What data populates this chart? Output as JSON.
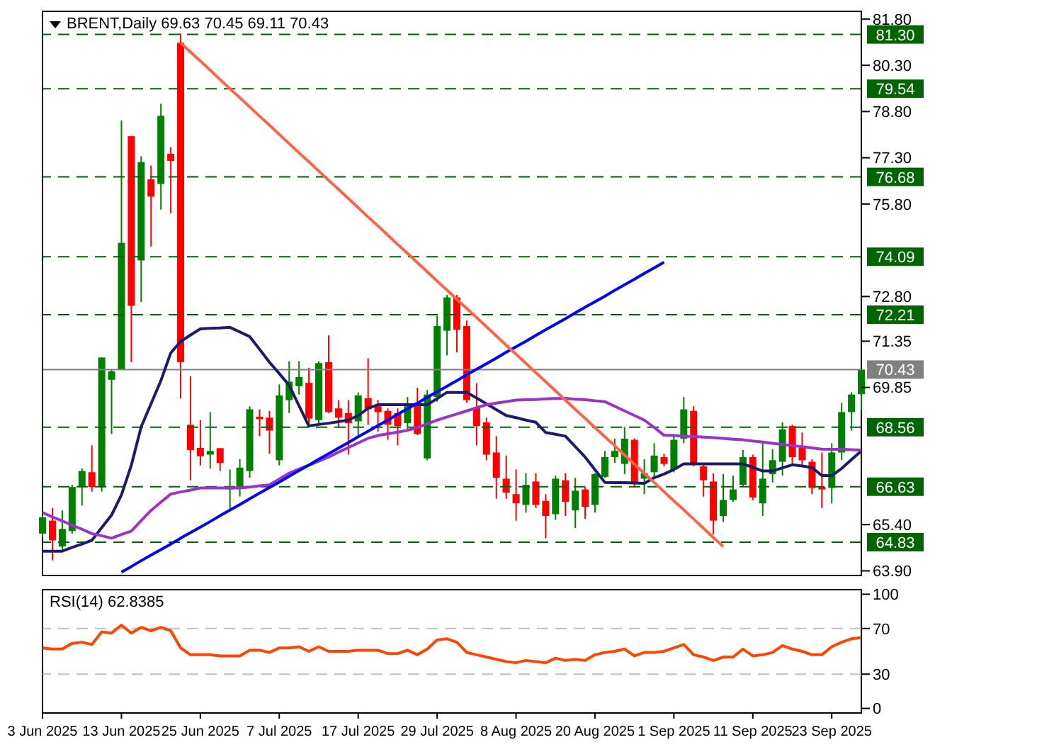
{
  "chart_data": [
    {
      "type": "candlestick",
      "title": "BRENT,Daily 69.63 70.45 69.11 70.43",
      "ohlc": [
        [
          65.11,
          65.7,
          65.0,
          65.64
        ],
        [
          65.53,
          65.94,
          64.24,
          64.89
        ],
        [
          64.69,
          65.86,
          64.59,
          65.26
        ],
        [
          65.19,
          66.69,
          65.11,
          66.62
        ],
        [
          66.62,
          67.22,
          66.02,
          67.14
        ],
        [
          67.1,
          67.97,
          66.47,
          66.62
        ],
        [
          66.62,
          70.82,
          66.47,
          70.82
        ],
        [
          70.1,
          70.44,
          68.34,
          70.37
        ],
        [
          70.44,
          78.51,
          70.44,
          74.54
        ],
        [
          78.0,
          78.0,
          70.67,
          72.5
        ],
        [
          73.97,
          77.35,
          72.62,
          77.16
        ],
        [
          76.6,
          77.05,
          74.42,
          76.04
        ],
        [
          76.45,
          79.05,
          75.62,
          78.66
        ],
        [
          77.43,
          77.65,
          75.5,
          77.2
        ],
        [
          81.03,
          81.33,
          69.5,
          70.67
        ],
        [
          68.64,
          70.22,
          66.84,
          67.82
        ],
        [
          67.89,
          68.79,
          67.32,
          67.62
        ],
        [
          67.67,
          69.05,
          67.22,
          67.79
        ],
        [
          67.88,
          67.88,
          67.14,
          67.4
        ],
        [
          66.54,
          67.19,
          65.89,
          66.65
        ],
        [
          66.59,
          67.52,
          66.31,
          67.25
        ],
        [
          67.14,
          69.24,
          66.92,
          69.14
        ],
        [
          68.9,
          69.14,
          68.27,
          68.82
        ],
        [
          68.87,
          69.09,
          67.7,
          68.45
        ],
        [
          67.49,
          69.95,
          67.32,
          69.59
        ],
        [
          69.44,
          70.7,
          69.02,
          70.04
        ],
        [
          69.89,
          70.7,
          69.62,
          70.19
        ],
        [
          70.0,
          70.49,
          68.6,
          68.84
        ],
        [
          68.79,
          70.7,
          68.69,
          70.64
        ],
        [
          70.67,
          71.54,
          69.02,
          69.05
        ],
        [
          69.17,
          69.44,
          68.57,
          68.87
        ],
        [
          69.02,
          69.44,
          67.67,
          68.69
        ],
        [
          68.75,
          69.69,
          68.27,
          69.59
        ],
        [
          69.5,
          70.79,
          68.64,
          69.14
        ],
        [
          69.24,
          69.44,
          68.42,
          69.05
        ],
        [
          69.09,
          69.17,
          68.15,
          68.64
        ],
        [
          69.02,
          69.17,
          67.97,
          68.6
        ],
        [
          68.69,
          69.54,
          68.49,
          69.24
        ],
        [
          69.35,
          69.84,
          68.3,
          68.34
        ],
        [
          67.55,
          69.77,
          67.49,
          69.62
        ],
        [
          69.54,
          72.17,
          69.39,
          71.84
        ],
        [
          71.69,
          72.85,
          70.89,
          72.77
        ],
        [
          72.77,
          72.85,
          70.99,
          71.72
        ],
        [
          71.84,
          72.02,
          69.35,
          69.44
        ],
        [
          69.2,
          69.99,
          67.97,
          68.6
        ],
        [
          68.72,
          68.87,
          67.49,
          67.67
        ],
        [
          67.74,
          68.27,
          66.24,
          66.92
        ],
        [
          66.89,
          67.64,
          66.24,
          66.44
        ],
        [
          66.39,
          67.19,
          65.53,
          66.09
        ],
        [
          66.04,
          67.07,
          65.79,
          66.69
        ],
        [
          66.8,
          67.07,
          65.94,
          66.04
        ],
        [
          66.17,
          66.39,
          64.96,
          65.68
        ],
        [
          65.74,
          66.99,
          65.56,
          66.89
        ],
        [
          66.84,
          67.07,
          65.68,
          66.14
        ],
        [
          65.86,
          66.92,
          65.29,
          66.5
        ],
        [
          66.54,
          66.62,
          65.59,
          65.98
        ],
        [
          66.04,
          67.07,
          65.79,
          67.04
        ],
        [
          66.95,
          67.79,
          66.92,
          67.59
        ],
        [
          67.59,
          68.19,
          67.4,
          67.79
        ],
        [
          67.37,
          68.57,
          67.04,
          68.19
        ],
        [
          68.15,
          68.2,
          66.6,
          66.77
        ],
        [
          66.89,
          67.52,
          66.39,
          67.07
        ],
        [
          67.1,
          68.04,
          66.92,
          67.64
        ],
        [
          67.59,
          67.7,
          67.29,
          67.37
        ],
        [
          67.19,
          68.34,
          67.1,
          68.15
        ],
        [
          68.19,
          69.54,
          68.04,
          69.14
        ],
        [
          69.09,
          69.24,
          67.29,
          67.37
        ],
        [
          67.29,
          67.4,
          66.31,
          66.84
        ],
        [
          66.8,
          67.07,
          65.08,
          65.53
        ],
        [
          65.68,
          67.04,
          65.49,
          66.2
        ],
        [
          66.2,
          66.99,
          66.14,
          66.54
        ],
        [
          66.69,
          67.82,
          66.62,
          67.59
        ],
        [
          67.59,
          67.67,
          66.2,
          66.28
        ],
        [
          66.09,
          68.04,
          65.68,
          66.89
        ],
        [
          67.04,
          67.85,
          66.77,
          67.49
        ],
        [
          67.44,
          68.72,
          66.99,
          68.49
        ],
        [
          68.6,
          68.64,
          67.37,
          67.59
        ],
        [
          67.89,
          68.39,
          67.29,
          67.49
        ],
        [
          67.44,
          67.52,
          66.39,
          66.59
        ],
        [
          66.62,
          67.74,
          65.94,
          66.54
        ],
        [
          66.59,
          68.04,
          66.09,
          67.74
        ],
        [
          67.74,
          69.35,
          67.49,
          69.05
        ],
        [
          69.05,
          69.69,
          68.45,
          69.62
        ],
        [
          69.63,
          70.45,
          69.11,
          70.43
        ]
      ],
      "colors": [
        "#008000",
        "#ff0000",
        "#008000",
        "#008000",
        "#008000",
        "#ff0000",
        "#008000",
        "#008000",
        "#008000",
        "#ff0000",
        "#008000",
        "#ff0000",
        "#008000",
        "#ff0000",
        "#ff0000",
        "#ff0000",
        "#ff0000",
        "#008000",
        "#ff0000",
        "#008000",
        "#008000",
        "#008000",
        "#ff0000",
        "#ff0000",
        "#008000",
        "#008000",
        "#008000",
        "#ff0000",
        "#008000",
        "#ff0000",
        "#ff0000",
        "#ff0000",
        "#008000",
        "#ff0000",
        "#ff0000",
        "#ff0000",
        "#ff0000",
        "#008000",
        "#ff0000",
        "#008000",
        "#008000",
        "#008000",
        "#ff0000",
        "#ff0000",
        "#ff0000",
        "#ff0000",
        "#ff0000",
        "#ff0000",
        "#ff0000",
        "#008000",
        "#ff0000",
        "#ff0000",
        "#008000",
        "#ff0000",
        "#008000",
        "#ff0000",
        "#008000",
        "#008000",
        "#008000",
        "#008000",
        "#ff0000",
        "#008000",
        "#008000",
        "#ff0000",
        "#008000",
        "#008000",
        "#ff0000",
        "#ff0000",
        "#ff0000",
        "#008000",
        "#008000",
        "#008000",
        "#ff0000",
        "#008000",
        "#008000",
        "#008000",
        "#ff0000",
        "#ff0000",
        "#ff0000",
        "#ff0000",
        "#008000",
        "#008000",
        "#008000",
        "#008000"
      ],
      "series": [
        {
          "type": "line",
          "color": "#1c1c6b",
          "values": [
            64.54,
            64.54,
            64.54,
            64.66,
            64.77,
            64.89,
            65.3,
            65.71,
            66.36,
            67.32,
            68.57,
            69.32,
            70.07,
            70.97,
            71.34,
            71.55,
            71.75,
            71.77,
            71.78,
            71.8,
            71.65,
            71.5,
            71.09,
            70.67,
            70.3,
            69.92,
            69.26,
            68.6,
            68.65,
            68.69,
            68.74,
            68.79,
            68.94,
            69.17,
            69.29,
            69.29,
            69.29,
            69.29,
            69.29,
            69.29,
            69.49,
            69.69,
            69.69,
            69.69,
            69.51,
            69.32,
            69.13,
            68.94,
            68.87,
            68.79,
            68.72,
            68.39,
            68.33,
            68.27,
            67.93,
            67.59,
            67.18,
            66.77,
            66.76,
            66.76,
            66.75,
            66.74,
            66.92,
            67.04,
            67.19,
            67.37,
            67.37,
            67.37,
            67.37,
            67.37,
            67.37,
            67.37,
            67.26,
            67.14,
            67.14,
            67.24,
            67.34,
            67.3,
            67.25,
            66.99,
            66.99,
            67.22,
            67.51,
            67.79
          ]
        },
        {
          "type": "line",
          "color": "#9933cc",
          "values": [
            65.79,
            65.65,
            65.52,
            65.38,
            65.25,
            65.11,
            65.04,
            64.96,
            65.08,
            65.19,
            65.53,
            65.86,
            66.13,
            66.39,
            66.46,
            66.52,
            66.59,
            66.59,
            66.59,
            66.59,
            66.59,
            66.62,
            66.66,
            66.69,
            66.88,
            67.07,
            67.2,
            67.33,
            67.46,
            67.59,
            67.75,
            67.9,
            68.05,
            68.2,
            68.29,
            68.35,
            68.4,
            68.46,
            68.55,
            68.67,
            68.79,
            68.89,
            68.99,
            69.09,
            69.19,
            69.29,
            69.34,
            69.39,
            69.44,
            69.45,
            69.46,
            69.48,
            69.49,
            69.5,
            69.47,
            69.45,
            69.42,
            69.39,
            69.24,
            69.09,
            68.94,
            68.79,
            68.55,
            68.3,
            68.29,
            68.27,
            68.26,
            68.24,
            68.22,
            68.2,
            68.17,
            68.15,
            68.11,
            68.08,
            68.04,
            68.0,
            67.96,
            67.93,
            67.89,
            67.85,
            67.84,
            67.84,
            67.83,
            67.82
          ]
        },
        {
          "type": "line",
          "color": "#0000ff",
          "values": [
            null,
            null,
            null,
            null,
            null,
            null,
            null,
            null,
            63.86,
            64.04,
            64.23,
            64.41,
            64.59,
            64.77,
            64.96,
            65.14,
            65.32,
            65.5,
            65.69,
            65.87,
            66.05,
            66.24,
            66.42,
            66.6,
            66.78,
            66.97,
            67.15,
            67.33,
            67.52,
            67.7,
            67.88,
            68.06,
            68.25,
            68.43,
            68.61,
            68.79,
            68.98,
            69.16,
            69.34,
            69.53,
            69.71,
            69.89,
            70.07,
            70.26,
            70.44,
            70.62,
            70.8,
            70.99,
            71.17,
            71.35,
            71.54,
            71.72,
            71.9,
            72.08,
            72.27,
            72.45,
            72.63,
            72.81,
            73.0,
            73.18,
            73.36,
            73.55,
            73.73,
            73.91,
            null,
            null,
            null,
            null,
            null,
            null,
            null,
            null,
            null,
            null,
            null,
            null,
            null,
            null,
            null,
            null,
            null,
            null,
            null,
            null
          ]
        },
        {
          "type": "line",
          "color": "#ff6347",
          "values": [
            null,
            null,
            null,
            null,
            null,
            null,
            null,
            null,
            null,
            null,
            null,
            null,
            null,
            null,
            81.03,
            80.73,
            80.44,
            80.14,
            79.84,
            79.54,
            79.25,
            78.95,
            78.65,
            78.36,
            78.06,
            77.76,
            77.46,
            77.17,
            76.87,
            76.57,
            76.28,
            75.98,
            75.68,
            75.38,
            75.09,
            74.79,
            74.49,
            74.2,
            73.9,
            73.6,
            73.3,
            73.01,
            72.71,
            72.41,
            72.12,
            71.82,
            71.52,
            71.22,
            70.93,
            70.63,
            70.33,
            70.04,
            69.74,
            69.44,
            69.14,
            68.85,
            68.55,
            68.25,
            67.96,
            67.66,
            67.36,
            67.06,
            66.77,
            66.47,
            66.17,
            65.88,
            65.58,
            65.28,
            64.98,
            64.69,
            null,
            null,
            null,
            null,
            null,
            null,
            null,
            null,
            null,
            null,
            null,
            null,
            null,
            null
          ]
        }
      ],
      "ylim": [
        63.75,
        82.05
      ],
      "yticks": [
        {
          "value": 63.9,
          "label": "63.90"
        },
        {
          "value": 65.4,
          "label": "65.40"
        },
        {
          "value": 69.85,
          "label": "69.85"
        },
        {
          "value": 71.35,
          "label": "71.35"
        },
        {
          "value": 72.8,
          "label": "72.80"
        },
        {
          "value": 75.8,
          "label": "75.80"
        },
        {
          "value": 77.3,
          "label": "77.30"
        },
        {
          "value": 78.8,
          "label": "78.80"
        },
        {
          "value": 80.3,
          "label": "80.30"
        },
        {
          "value": 81.8,
          "label": "81.80"
        }
      ],
      "ref_lines": [
        {
          "axis": "y",
          "value": 81.3,
          "label": "81.30",
          "color": "#006400",
          "line_style": "dashed"
        },
        {
          "axis": "y",
          "value": 79.54,
          "label": "79.54",
          "color": "#006400",
          "line_style": "dashed"
        },
        {
          "axis": "y",
          "value": 76.68,
          "label": "76.68",
          "color": "#006400",
          "line_style": "dashed"
        },
        {
          "axis": "y",
          "value": 74.09,
          "label": "74.09",
          "color": "#006400",
          "line_style": "dashed"
        },
        {
          "axis": "y",
          "value": 72.21,
          "label": "72.21",
          "color": "#006400",
          "line_style": "dashed"
        },
        {
          "axis": "y",
          "value": 70.43,
          "label": "70.43",
          "color": "#808080",
          "line_style": "solid"
        },
        {
          "axis": "y",
          "value": 68.56,
          "label": "68.56",
          "color": "#006400",
          "line_style": "dashed"
        },
        {
          "axis": "y",
          "value": 66.63,
          "label": "66.63",
          "color": "#006400",
          "line_style": "dashed"
        },
        {
          "axis": "y",
          "value": 64.83,
          "label": "64.83",
          "color": "#006400",
          "line_style": "dashed"
        }
      ],
      "tick_labels": "y"
    },
    {
      "type": "line",
      "title": "RSI(14) 62.8385",
      "categories": [
        "3 Jun 2025",
        null,
        null,
        null,
        null,
        null,
        null,
        null,
        "13 Jun 2025",
        null,
        null,
        null,
        null,
        null,
        null,
        null,
        "25 Jun 2025",
        null,
        null,
        null,
        null,
        null,
        null,
        null,
        "7 Jul 2025",
        null,
        null,
        null,
        null,
        null,
        null,
        null,
        "17 Jul 2025",
        null,
        null,
        null,
        null,
        null,
        null,
        null,
        "29 Jul 2025",
        null,
        null,
        null,
        null,
        null,
        null,
        null,
        "8 Aug 2025",
        null,
        null,
        null,
        null,
        null,
        null,
        null,
        "20 Aug 2025",
        null,
        null,
        null,
        null,
        null,
        null,
        null,
        "1 Sep 2025",
        null,
        null,
        null,
        null,
        null,
        null,
        null,
        "11 Sep 2025",
        null,
        null,
        null,
        null,
        null,
        null,
        null,
        "23 Sep 2025",
        null,
        null,
        null
      ],
      "series": [
        {
          "color": "#ff4500",
          "values": [
            53,
            52,
            52,
            57,
            58,
            56,
            67,
            66,
            73,
            66,
            71,
            68,
            71,
            68,
            53,
            47,
            47,
            47,
            46,
            46,
            46,
            51,
            51,
            49,
            53,
            53,
            54,
            50,
            54,
            50,
            50,
            50,
            51,
            51,
            51,
            48,
            48,
            51,
            47,
            52,
            60,
            61,
            58,
            49,
            47,
            45,
            43,
            41,
            40,
            42,
            41,
            40,
            44,
            42,
            43,
            42,
            47,
            49,
            50,
            52,
            46,
            49,
            49,
            50,
            53,
            56,
            47,
            45,
            42,
            45,
            45,
            52,
            46,
            47,
            49,
            55,
            52,
            50,
            47,
            47,
            54,
            58,
            61,
            62
          ]
        }
      ],
      "ylim": [
        -4,
        104
      ],
      "yticks": [
        0,
        30,
        70,
        100
      ],
      "ref_lines": [
        {
          "axis": "y",
          "value": 70,
          "color": "#c0c0c0",
          "line_style": "dashed"
        },
        {
          "axis": "y",
          "value": 30,
          "color": "#c0c0c0",
          "line_style": "dashed"
        }
      ]
    }
  ]
}
